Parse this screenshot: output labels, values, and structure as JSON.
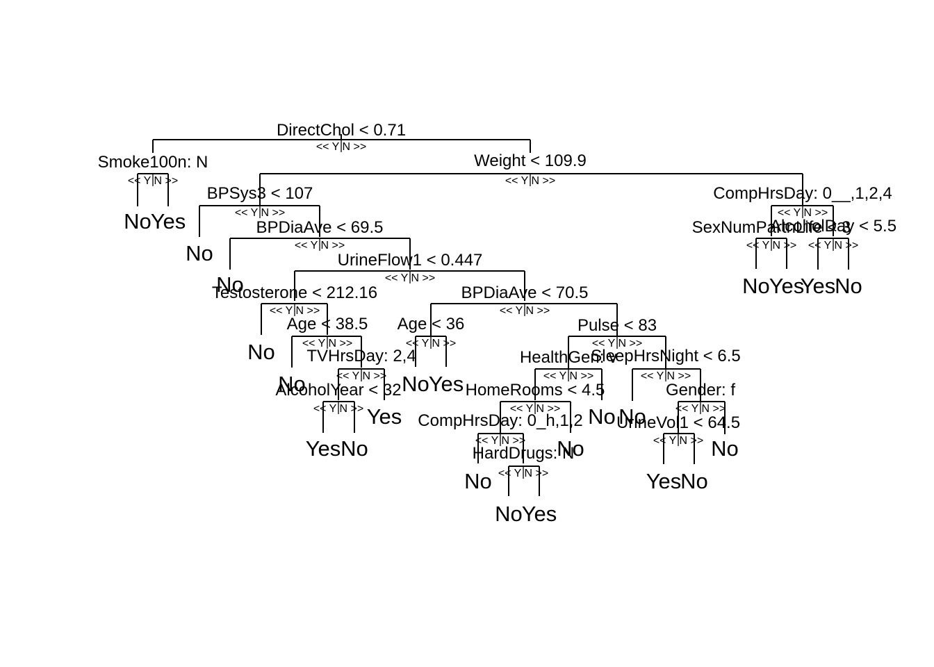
{
  "tree": {
    "nodes": [
      {
        "id": "n0",
        "split": "DirectChol < 0.71"
      },
      {
        "id": "n1",
        "split": "Smoke100n: N",
        "parent": "n0",
        "side": "Y"
      },
      {
        "id": "n2",
        "split": "Weight < 109.9",
        "parent": "n0",
        "side": "N"
      },
      {
        "id": "n3",
        "split": "BPSys3 < 107",
        "parent": "n2",
        "side": "Y"
      },
      {
        "id": "n4",
        "split": "CompHrsDay: 0__,1,2,4",
        "parent": "n2",
        "side": "N"
      },
      {
        "id": "n5",
        "split": "BPDiaAve < 69.5",
        "parent": "n3",
        "side": "N"
      },
      {
        "id": "n6",
        "split": "UrineFlow1 < 0.447",
        "parent": "n5",
        "side": "N"
      },
      {
        "id": "n7",
        "split": "Testosterone < 212.16",
        "parent": "n6",
        "side": "Y"
      },
      {
        "id": "n8",
        "split": "BPDiaAve < 70.5",
        "parent": "n6",
        "side": "N"
      },
      {
        "id": "n9",
        "split": "Age < 38.5",
        "parent": "n7",
        "side": "N"
      },
      {
        "id": "n10",
        "split": "TVHrsDay: 2,4",
        "parent": "n9",
        "side": "N"
      },
      {
        "id": "n11",
        "split": "AlcoholYear < 32",
        "parent": "n10",
        "side": "Y"
      },
      {
        "id": "n12",
        "split": "Age < 36",
        "parent": "n8",
        "side": "Y"
      },
      {
        "id": "n13",
        "split": "Pulse < 83",
        "parent": "n8",
        "side": "N"
      },
      {
        "id": "n14",
        "split": "HealthGen: v",
        "parent": "n13",
        "side": "Y"
      },
      {
        "id": "n15",
        "split": "SleepHrsNight < 6.5",
        "parent": "n13",
        "side": "N"
      },
      {
        "id": "n16",
        "split": "HomeRooms < 4.5",
        "parent": "n14",
        "side": "Y"
      },
      {
        "id": "n17",
        "split": "CompHrsDay: 0_h,1,2",
        "parent": "n16",
        "side": "Y"
      },
      {
        "id": "n18",
        "split": "HardDrugs: N",
        "parent": "n17",
        "side": "N"
      },
      {
        "id": "n19",
        "split": "Gender: f",
        "parent": "n15",
        "side": "N"
      },
      {
        "id": "n20",
        "split": "UrineVol1 < 64.5",
        "parent": "n19",
        "side": "Y"
      },
      {
        "id": "n21",
        "split": "SexNumPartnLife < 3",
        "parent": "n4",
        "side": "Y"
      },
      {
        "id": "n22",
        "split": "AlcoholDay < 5.5",
        "parent": "n4",
        "side": "N"
      }
    ],
    "yn_label": "<< Y N >>",
    "leaves": [
      {
        "label": "No",
        "parent": "n1",
        "side": "Y"
      },
      {
        "label": "Yes",
        "parent": "n1",
        "side": "N"
      },
      {
        "label": "No",
        "parent": "n3",
        "side": "Y"
      },
      {
        "label": "No",
        "parent": "n5",
        "side": "Y"
      },
      {
        "label": "No",
        "parent": "n7",
        "side": "Y"
      },
      {
        "label": "No",
        "parent": "n9",
        "side": "Y"
      },
      {
        "label": "Yes",
        "parent": "n10",
        "side": "N"
      },
      {
        "label": "Yes",
        "parent": "n11",
        "side": "Y"
      },
      {
        "label": "No",
        "parent": "n11",
        "side": "N"
      },
      {
        "label": "No",
        "parent": "n12",
        "side": "Y"
      },
      {
        "label": "Yes",
        "parent": "n12",
        "side": "N"
      },
      {
        "label": "No",
        "parent": "n14",
        "side": "N"
      },
      {
        "label": "No",
        "parent": "n16",
        "side": "N"
      },
      {
        "label": "No",
        "parent": "n17",
        "side": "Y"
      },
      {
        "label": "No",
        "parent": "n18",
        "side": "Y"
      },
      {
        "label": "Yes",
        "parent": "n18",
        "side": "N"
      },
      {
        "label": "No",
        "parent": "n15",
        "side": "Y"
      },
      {
        "label": "Yes",
        "parent": "n20",
        "side": "Y"
      },
      {
        "label": "No",
        "parent": "n20",
        "side": "N"
      },
      {
        "label": "No",
        "parent": "n19",
        "side": "N"
      },
      {
        "label": "No",
        "parent": "n21",
        "side": "Y"
      },
      {
        "label": "Yes",
        "parent": "n21",
        "side": "N"
      },
      {
        "label": "Yes",
        "parent": "n22",
        "side": "Y"
      },
      {
        "label": "No",
        "parent": "n22",
        "side": "N"
      }
    ]
  }
}
